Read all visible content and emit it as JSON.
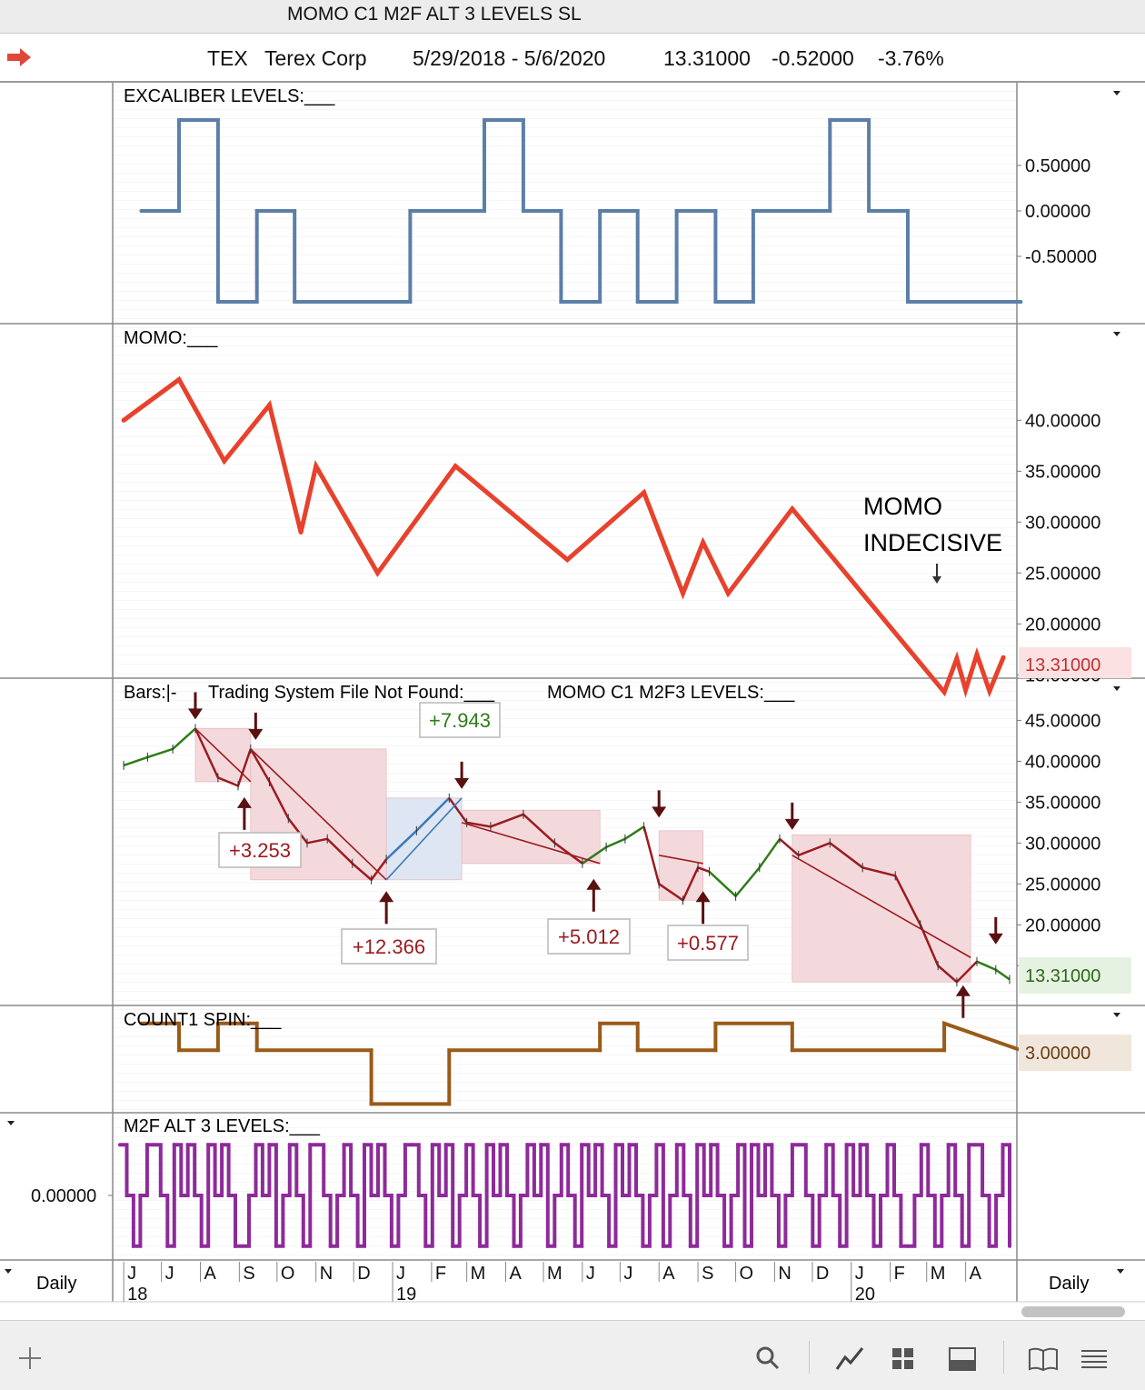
{
  "window": {
    "title": "MOMO C1 M2F ALT 3 LEVELS  SL"
  },
  "header": {
    "symbol": "TEX",
    "company": "Terex Corp",
    "date_range": "5/29/2018 - 5/6/2020",
    "last": "13.31000",
    "change": "-0.52000",
    "change_pct": "-3.76%"
  },
  "colors": {
    "excaliber": "#5b7fa8",
    "momo": "#e8412c",
    "up_bar": "#2e7d18",
    "down_bar": "#9c1b20",
    "blue_bar": "#3d7ab8",
    "count1": "#9a5a18",
    "m2f": "#8e2a9a",
    "short_zone": "#f3d9dc",
    "long_zone": "#dde6f2"
  },
  "panels": {
    "excaliber": {
      "label": "EXCALIBER LEVELS:___"
    },
    "momo": {
      "label": "MOMO:___",
      "last_badge": "13.31000",
      "annotation_line1": "MOMO",
      "annotation_line2": "INDECISIVE"
    },
    "bars": {
      "label1": "Bars:|-",
      "label2": "Trading System File Not Found:___",
      "label3": "MOMO C1 M2F3 LEVELS:___",
      "last_badge": "13.31000"
    },
    "count1": {
      "label": "COUNT1 SPIN:___",
      "last_badge": "3.00000"
    },
    "m2f": {
      "label": "M2F ALT 3 LEVELS:___"
    }
  },
  "xaxis": {
    "months": [
      "J",
      "J",
      "A",
      "S",
      "O",
      "N",
      "D",
      "J",
      "F",
      "M",
      "A",
      "M",
      "J",
      "J",
      "A",
      "S",
      "O",
      "N",
      "D",
      "J",
      "F",
      "M",
      "A"
    ],
    "years": [
      "18",
      "19",
      "20"
    ],
    "left_label": "Daily",
    "right_label": "Daily"
  },
  "chart_data": [
    {
      "type": "line",
      "title": "EXCALIBER LEVELS:___",
      "yticks": [
        "0.50000",
        "0.00000",
        "-0.50000"
      ],
      "ylim": [
        -1,
        1
      ],
      "x": [
        "2018-06",
        "2018-07",
        "2018-07",
        "2018-08",
        "2018-08",
        "2018-08",
        "2018-09",
        "2018-09",
        "2018-10",
        "2018-10",
        "2019-01",
        "2019-01",
        "2019-03",
        "2019-03",
        "2019-04",
        "2019-04",
        "2019-05",
        "2019-05",
        "2019-06",
        "2019-06",
        "2019-07",
        "2019-07",
        "2019-08",
        "2019-08",
        "2019-09",
        "2019-09",
        "2019-10",
        "2019-10",
        "2019-12",
        "2019-12",
        "2020-01",
        "2020-01",
        "2020-02",
        "2020-02",
        "2020-05"
      ],
      "values": [
        0,
        0,
        1,
        1,
        0,
        -1,
        -1,
        0,
        0,
        -1,
        -1,
        0,
        0,
        1,
        1,
        0,
        0,
        -1,
        -1,
        0,
        0,
        -1,
        -1,
        0,
        0,
        -1,
        -1,
        0,
        0,
        1,
        1,
        0,
        0,
        -1,
        -1
      ]
    },
    {
      "type": "line",
      "title": "MOMO:___",
      "yticks": [
        "40.00000",
        "35.00000",
        "30.00000",
        "25.00000",
        "20.00000",
        "15.00000"
      ],
      "ylim": [
        13,
        45
      ],
      "x": [
        "2018-06-01",
        "2018-07-15",
        "2018-08-20",
        "2018-09-25",
        "2018-10-20",
        "2018-11-01",
        "2018-12-20",
        "2019-02-20",
        "2019-05-20",
        "2019-07-20",
        "2019-08-20",
        "2019-09-05",
        "2019-09-25",
        "2019-11-15",
        "2020-03-15",
        "2020-03-25",
        "2020-04-01",
        "2020-04-10",
        "2020-04-20",
        "2020-05-01"
      ],
      "values": [
        40.0,
        44.0,
        36.0,
        41.5,
        29.0,
        35.5,
        25.0,
        35.5,
        26.3,
        32.9,
        23.0,
        28.0,
        23.0,
        31.3,
        13.3,
        16.6,
        13.5,
        17.0,
        13.4,
        16.7
      ]
    },
    {
      "type": "line",
      "title": "Bars:|-",
      "yticks": [
        "45.00000",
        "40.00000",
        "35.00000",
        "30.00000",
        "25.00000",
        "20.00000",
        "15.00000"
      ],
      "ylim": [
        11,
        47
      ],
      "x": [
        "2018-06-01",
        "2018-06-20",
        "2018-07-10",
        "2018-07-28",
        "2018-08-15",
        "2018-08-31",
        "2018-09-10",
        "2018-09-25",
        "2018-10-10",
        "2018-10-25",
        "2018-11-10",
        "2018-11-30",
        "2018-12-15",
        "2018-12-27",
        "2019-01-20",
        "2019-02-15",
        "2019-03-01",
        "2019-03-20",
        "2019-04-15",
        "2019-05-10",
        "2019-06-01",
        "2019-06-20",
        "2019-07-05",
        "2019-07-20",
        "2019-08-01",
        "2019-08-20",
        "2019-09-01",
        "2019-09-10",
        "2019-10-01",
        "2019-10-20",
        "2019-11-05",
        "2019-11-20",
        "2019-12-15",
        "2020-01-10",
        "2020-02-05",
        "2020-02-25",
        "2020-03-10",
        "2020-03-25",
        "2020-04-10",
        "2020-04-25",
        "2020-05-06"
      ],
      "values": [
        39.5,
        40.5,
        41.5,
        44.0,
        38.0,
        37.0,
        41.5,
        37.5,
        33.0,
        30.0,
        30.5,
        27.5,
        25.5,
        28.0,
        31.5,
        35.5,
        32.5,
        32.0,
        33.5,
        30.0,
        27.5,
        29.5,
        30.5,
        32.0,
        25.0,
        23.0,
        27.0,
        26.5,
        23.5,
        27.0,
        30.5,
        28.5,
        30.0,
        27.0,
        26.0,
        20.0,
        15.0,
        13.0,
        15.5,
        14.5,
        13.31
      ],
      "trade_labels": [
        "+3.253",
        "+12.366",
        "+7.943",
        "+5.012",
        "+0.577"
      ]
    },
    {
      "type": "line",
      "title": "COUNT1 SPIN:___",
      "yticks": [
        "3.00000"
      ],
      "ylim": [
        1,
        5
      ],
      "x": [
        "2018-06",
        "2018-07",
        "2018-07",
        "2018-08",
        "2018-08",
        "2018-09",
        "2018-09",
        "2018-12",
        "2018-12",
        "2019-02",
        "2019-02",
        "2019-06",
        "2019-06",
        "2019-07",
        "2019-07",
        "2019-09",
        "2019-09",
        "2019-11",
        "2019-11",
        "2020-03",
        "2020-03",
        "2020-05"
      ],
      "values": [
        4,
        4,
        3,
        3,
        4,
        4,
        3,
        3,
        1,
        1,
        3,
        3,
        4,
        4,
        3,
        3,
        4,
        4,
        3,
        3,
        4,
        3
      ]
    },
    {
      "type": "line",
      "title": "M2F ALT 3 LEVELS:___",
      "yticks": [
        "0.00000"
      ],
      "ylim": [
        -1.2,
        1.2
      ],
      "x_range": [
        "2018-06",
        "2020-05"
      ],
      "values": [
        1,
        0,
        -1,
        0,
        1,
        1,
        0,
        -1,
        1,
        0,
        1,
        0,
        -1,
        1,
        0,
        1,
        0,
        -1,
        -1,
        0,
        1,
        0,
        1,
        -1,
        0,
        1,
        0,
        -1,
        1,
        1,
        0,
        -1,
        0,
        1,
        0,
        -1,
        1,
        0,
        1,
        0,
        -1,
        0,
        1,
        1,
        0,
        -1,
        1,
        0,
        1,
        -1,
        0,
        1,
        0,
        -1,
        1,
        0,
        1,
        0,
        -1,
        0,
        1,
        0,
        1,
        -1,
        0,
        1,
        0,
        -1,
        1,
        0,
        1,
        0,
        -1,
        1,
        0,
        1,
        0,
        -1,
        0,
        1,
        -1,
        0,
        1,
        0,
        -1,
        1,
        0,
        1,
        0,
        -1,
        0,
        1,
        -1,
        1,
        0,
        1,
        0,
        -1,
        0,
        1,
        1,
        0,
        -1,
        0,
        1,
        0,
        -1,
        1,
        0,
        1,
        0,
        -1,
        0,
        1,
        0,
        -1,
        -1,
        0,
        1,
        0,
        -1,
        0,
        1,
        0,
        -1,
        1,
        1,
        0,
        -1,
        0,
        1,
        -1
      ]
    }
  ]
}
